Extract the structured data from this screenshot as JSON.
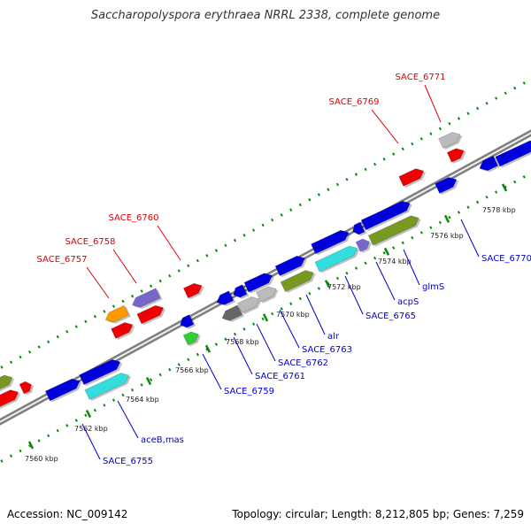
{
  "title": "Saccharopolyspora erythraea NRRL 2338, complete genome",
  "footer": {
    "accession": "Accession: NC_009142",
    "summary": "Topology: circular; Length: 8,212,805 bp; Genes: 7,259"
  },
  "colors": {
    "backbone": "#7f7f7f",
    "tick_green": "#0a8a0a",
    "top_label": "#dd0000",
    "bottom_label": "#0000cc",
    "blue": "#0000dd",
    "red": "#ee0000",
    "gray": "#bbbbbb",
    "dark_gray": "#666666",
    "purple": "#7766cc",
    "orange": "#ff9900",
    "olive": "#779922",
    "cyan": "#33dddd",
    "green": "#33cc33"
  },
  "ticks": [
    "7560 kbp",
    "7562 kbp",
    "7564 kbp",
    "7566 kbp",
    "7568 kbp",
    "7570 kbp",
    "7572 kbp",
    "7574 kbp",
    "7576 kbp",
    "7578 kbp"
  ],
  "top_labels": [
    "SACE_6771",
    "SACE_6769",
    "SACE_6760",
    "SACE_6758",
    "SACE_6757"
  ],
  "bottom_labels": [
    "SACE_6770",
    "glmS",
    "acpS",
    "SACE_6765",
    "alr",
    "SACE_6763",
    "SACE_6762",
    "SACE_6761",
    "SACE_6759",
    "aceB,mas",
    "SACE_6755"
  ]
}
